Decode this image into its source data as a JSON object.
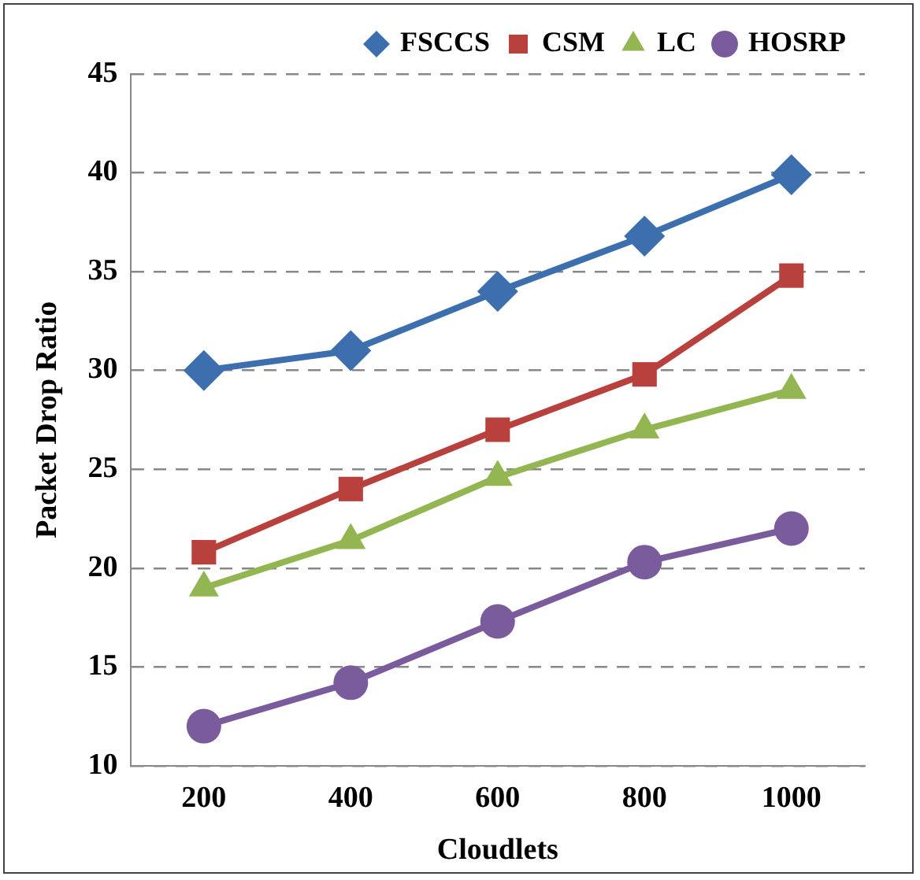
{
  "chart_data": {
    "type": "line",
    "xlabel": "Cloudlets",
    "ylabel": "Packet Drop Ratio",
    "categories": [
      "200",
      "400",
      "600",
      "800",
      "1000"
    ],
    "series": [
      {
        "name": "FSCCS",
        "color": "#3d6fae",
        "marker": "diamond",
        "values": [
          30,
          31,
          34,
          36.8,
          39.9
        ]
      },
      {
        "name": "CSM",
        "color": "#b8413e",
        "marker": "square",
        "values": [
          20.8,
          24,
          27,
          29.8,
          34.8
        ]
      },
      {
        "name": "LC",
        "color": "#93b652",
        "marker": "triangle",
        "values": [
          19,
          21.4,
          24.6,
          27,
          29
        ]
      },
      {
        "name": "HOSRP",
        "color": "#7a5c9c",
        "marker": "circle",
        "values": [
          12,
          14.2,
          17.3,
          20.3,
          22
        ]
      }
    ],
    "ylim": [
      10,
      45
    ],
    "yticks": [
      10,
      15,
      20,
      25,
      30,
      35,
      40,
      45
    ],
    "grid": "y",
    "legend": "top",
    "line_style": "solid"
  }
}
